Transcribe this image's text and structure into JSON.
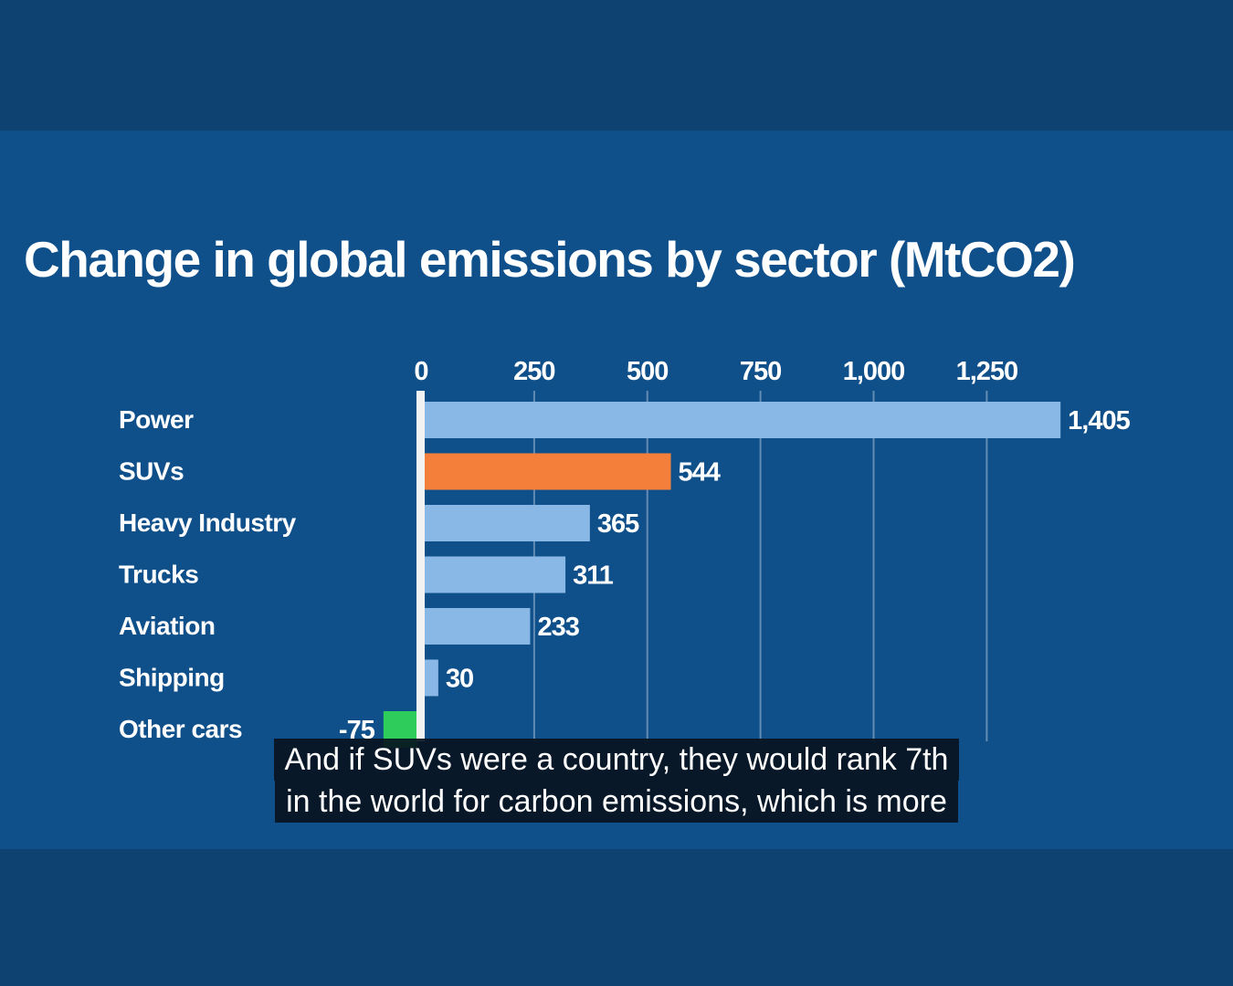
{
  "chart_data": {
    "type": "bar",
    "orientation": "horizontal",
    "title": "Change in global emissions by sector (MtCO2)",
    "categories": [
      "Power",
      "SUVs",
      "Heavy Industry",
      "Trucks",
      "Aviation",
      "Shipping",
      "Other cars"
    ],
    "values": [
      1405,
      544,
      365,
      311,
      233,
      30,
      -75
    ],
    "value_labels": [
      "1,405",
      "544",
      "365",
      "311",
      "233",
      "30",
      "-75"
    ],
    "colors": [
      "#8ab8e6",
      "#f47f3b",
      "#8ab8e6",
      "#8ab8e6",
      "#8ab8e6",
      "#8ab8e6",
      "#2ecc5a"
    ],
    "xticks": [
      0,
      250,
      500,
      750,
      1000,
      1250
    ],
    "xtick_labels": [
      "0",
      "250",
      "500",
      "750",
      "1,000",
      "1,250"
    ],
    "xlim": [
      -100,
      1500
    ],
    "grid": true,
    "xlabel": "",
    "ylabel": ""
  },
  "caption": {
    "lines": [
      "And if SUVs were a country, they would rank 7th",
      "in the world for carbon emissions, which is more"
    ]
  }
}
